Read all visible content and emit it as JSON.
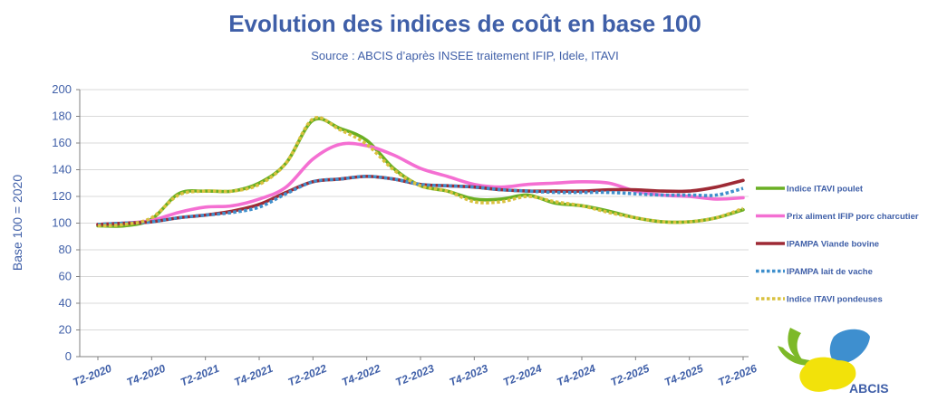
{
  "chart_data": {
    "type": "line",
    "title": "Evolution des indices de coût en base 100",
    "subtitle": "Source : ABCIS d’après INSEE traitement IFIP, Idele, ITAVI",
    "ylabel": "Base 100 = 2020",
    "xlabel": "",
    "ylim": [
      0,
      200
    ],
    "yticks": [
      0,
      20,
      40,
      60,
      80,
      100,
      120,
      140,
      160,
      180,
      200
    ],
    "grid": true,
    "legend_position": "right",
    "x": [
      "T2-2020",
      "T3-2020",
      "T4-2020",
      "T1-2021",
      "T2-2021",
      "T3-2021",
      "T4-2021",
      "T1-2022",
      "T2-2022",
      "T3-2022",
      "T4-2022",
      "T1-2023",
      "T2-2023",
      "T3-2023",
      "T4-2023",
      "T1-2024",
      "T2-2024",
      "T3-2024",
      "T4-2024",
      "T1-2025",
      "T2-2025",
      "T3-2025",
      "T4-2025",
      "T1-2026",
      "T2-2026"
    ],
    "x_tick_labels": [
      "T2-2020",
      "T4-2020",
      "T2-2021",
      "T4-2021",
      "T2-2022",
      "T4-2022",
      "T2-2023",
      "T4-2023",
      "T2-2024",
      "T4-2024",
      "T2-2025",
      "T4-2025",
      "T2-2026"
    ],
    "series": [
      {
        "name": "Indice ITAVI poulet",
        "color": "#6AAF23",
        "dash": "solid",
        "values": [
          98,
          98,
          103,
          122,
          124,
          124,
          130,
          145,
          177,
          171,
          162,
          141,
          128,
          124,
          118,
          118,
          121,
          115,
          113,
          109,
          104,
          101,
          101,
          104,
          110
        ]
      },
      {
        "name": "Prix aliment IFIP porc charcutier",
        "color": "#F46FD2",
        "dash": "solid",
        "values": [
          99,
          100,
          102,
          108,
          112,
          113,
          118,
          127,
          148,
          159,
          158,
          151,
          141,
          135,
          129,
          127,
          129,
          130,
          131,
          130,
          124,
          121,
          120,
          118,
          119
        ]
      },
      {
        "name": "IPAMPA Viande bovine",
        "color": "#9E2A35",
        "dash": "solid",
        "values": [
          99,
          100,
          101,
          104,
          106,
          109,
          114,
          123,
          131,
          133,
          135,
          133,
          129,
          128,
          127,
          125,
          124,
          124,
          124,
          125,
          125,
          124,
          124,
          127,
          132
        ]
      },
      {
        "name": "IPAMPA lait de vache",
        "color": "#3F8FCC",
        "dash": "dotted",
        "values": [
          99,
          100,
          101,
          104,
          106,
          108,
          112,
          122,
          131,
          133,
          135,
          133,
          129,
          128,
          127,
          125,
          124,
          123,
          123,
          123,
          122,
          121,
          121,
          121,
          126
        ]
      },
      {
        "name": "Indice ITAVI pondeuses",
        "color": "#D9C13F",
        "dash": "dotted",
        "values": [
          98,
          99,
          104,
          121,
          124,
          124,
          129,
          145,
          178,
          170,
          159,
          140,
          128,
          124,
          116,
          116,
          120,
          116,
          113,
          108,
          104,
          101,
          101,
          104,
          111
        ]
      }
    ]
  },
  "logo": {
    "text": "ABCIS"
  }
}
